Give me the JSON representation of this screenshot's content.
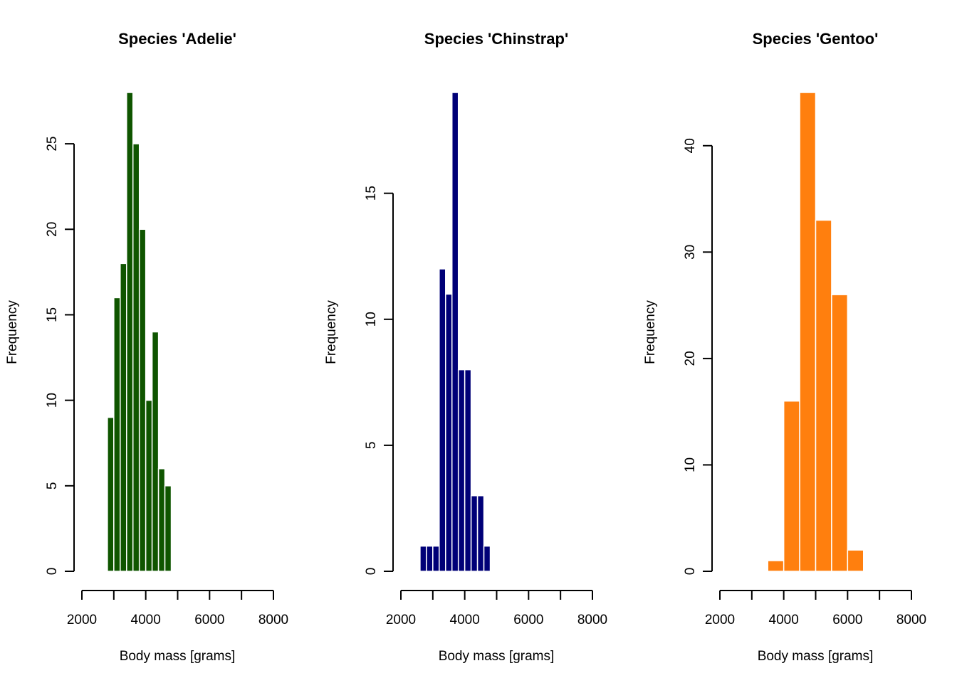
{
  "chart_data": [
    {
      "type": "bar",
      "subtype": "histogram",
      "title": "Species 'Adelie'",
      "xlabel": "Body mass [grams]",
      "ylabel": "Frequency",
      "color": "#0f5500",
      "bin_edges": [
        2800,
        3000,
        3200,
        3400,
        3600,
        3800,
        4000,
        4200,
        4400,
        4600,
        4800
      ],
      "values": [
        9,
        16,
        18,
        28,
        25,
        20,
        10,
        14,
        6,
        5
      ],
      "xlim": [
        2000,
        8000
      ],
      "ylim": [
        0,
        28
      ],
      "xticks": [
        2000,
        3000,
        4000,
        5000,
        6000,
        7000,
        8000
      ],
      "xtick_labels": [
        "2000",
        "",
        "4000",
        "",
        "6000",
        "",
        "8000"
      ],
      "yticks": [
        0,
        5,
        10,
        15,
        20,
        25
      ],
      "ytick_labels": [
        "0",
        "5",
        "10",
        "15",
        "20",
        "25"
      ],
      "grid": false
    },
    {
      "type": "bar",
      "subtype": "histogram",
      "title": "Species 'Chinstrap'",
      "xlabel": "Body mass [grams]",
      "ylabel": "Frequency",
      "color": "#000077",
      "bin_edges": [
        2600,
        2800,
        3000,
        3200,
        3400,
        3600,
        3800,
        4000,
        4200,
        4400,
        4600,
        4800
      ],
      "values": [
        1,
        1,
        1,
        12,
        11,
        19,
        8,
        8,
        3,
        3,
        1
      ],
      "xlim": [
        2000,
        8000
      ],
      "ylim": [
        0,
        19
      ],
      "xticks": [
        2000,
        3000,
        4000,
        5000,
        6000,
        7000,
        8000
      ],
      "xtick_labels": [
        "2000",
        "",
        "4000",
        "",
        "6000",
        "",
        "8000"
      ],
      "yticks": [
        0,
        5,
        10,
        15
      ],
      "ytick_labels": [
        "0",
        "5",
        "10",
        "15"
      ],
      "grid": false
    },
    {
      "type": "bar",
      "subtype": "histogram",
      "title": "Species 'Gentoo'",
      "xlabel": "Body mass [grams]",
      "ylabel": "Frequency",
      "color": "#ff7f0e",
      "bin_edges": [
        3500,
        4000,
        4500,
        5000,
        5500,
        6000,
        6500
      ],
      "values": [
        1,
        16,
        45,
        33,
        26,
        2
      ],
      "xlim": [
        2000,
        8000
      ],
      "ylim": [
        0,
        45
      ],
      "xticks": [
        2000,
        3000,
        4000,
        5000,
        6000,
        7000,
        8000
      ],
      "xtick_labels": [
        "2000",
        "",
        "4000",
        "",
        "6000",
        "",
        "8000"
      ],
      "yticks": [
        0,
        10,
        20,
        30,
        40
      ],
      "ytick_labels": [
        "0",
        "10",
        "20",
        "30",
        "40"
      ],
      "grid": false
    }
  ]
}
